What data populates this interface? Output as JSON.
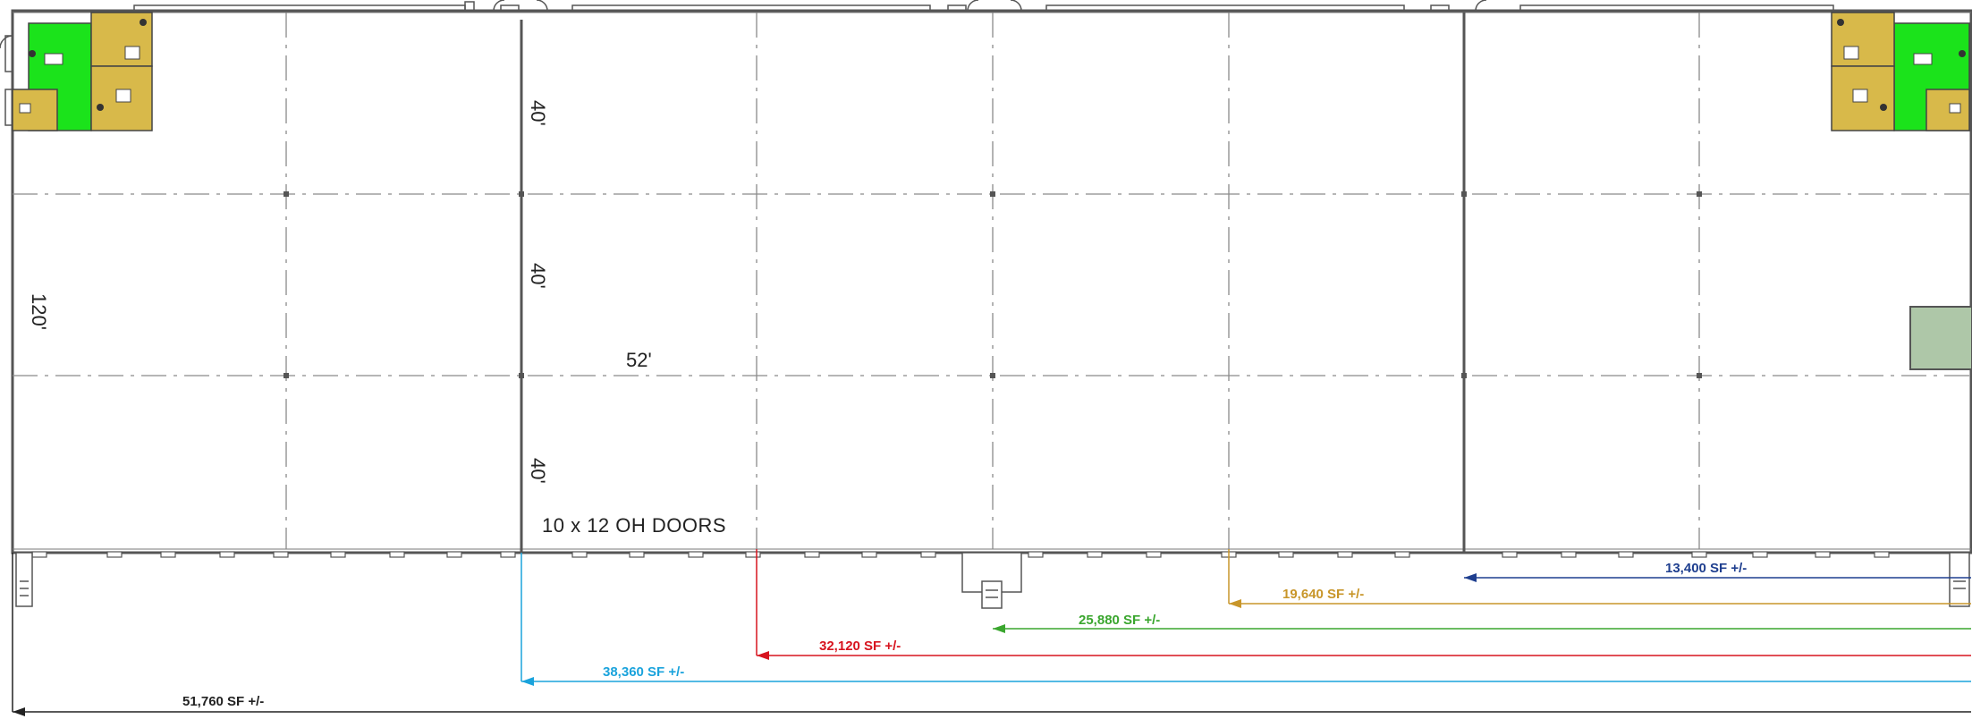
{
  "dimensions": {
    "bay_height_top": "40'",
    "bay_height_mid": "40'",
    "bay_height_bottom": "40'",
    "building_depth": "120'",
    "bay_width": "52'"
  },
  "labels": {
    "doors_note": "10 x 12 OH DOORS"
  },
  "square_footage": [
    {
      "id": "sf_13400",
      "label": "13,400 SF +/-",
      "color": "#1f3f8f"
    },
    {
      "id": "sf_19640",
      "label": "19,640 SF +/-",
      "color": "#c8962a"
    },
    {
      "id": "sf_25880",
      "label": "25,880 SF +/-",
      "color": "#3aa62e"
    },
    {
      "id": "sf_32120",
      "label": "32,120 SF +/-",
      "color": "#d7141f"
    },
    {
      "id": "sf_38360",
      "label": "38,360 SF +/-",
      "color": "#1aa3dc"
    },
    {
      "id": "sf_51760",
      "label": "51,760 SF +/-",
      "color": "#222222"
    }
  ],
  "colors": {
    "office_green": "#1be31b",
    "office_tan": "#d8b94a",
    "grid_line": "#8a8a8a",
    "wall": "#555555"
  }
}
